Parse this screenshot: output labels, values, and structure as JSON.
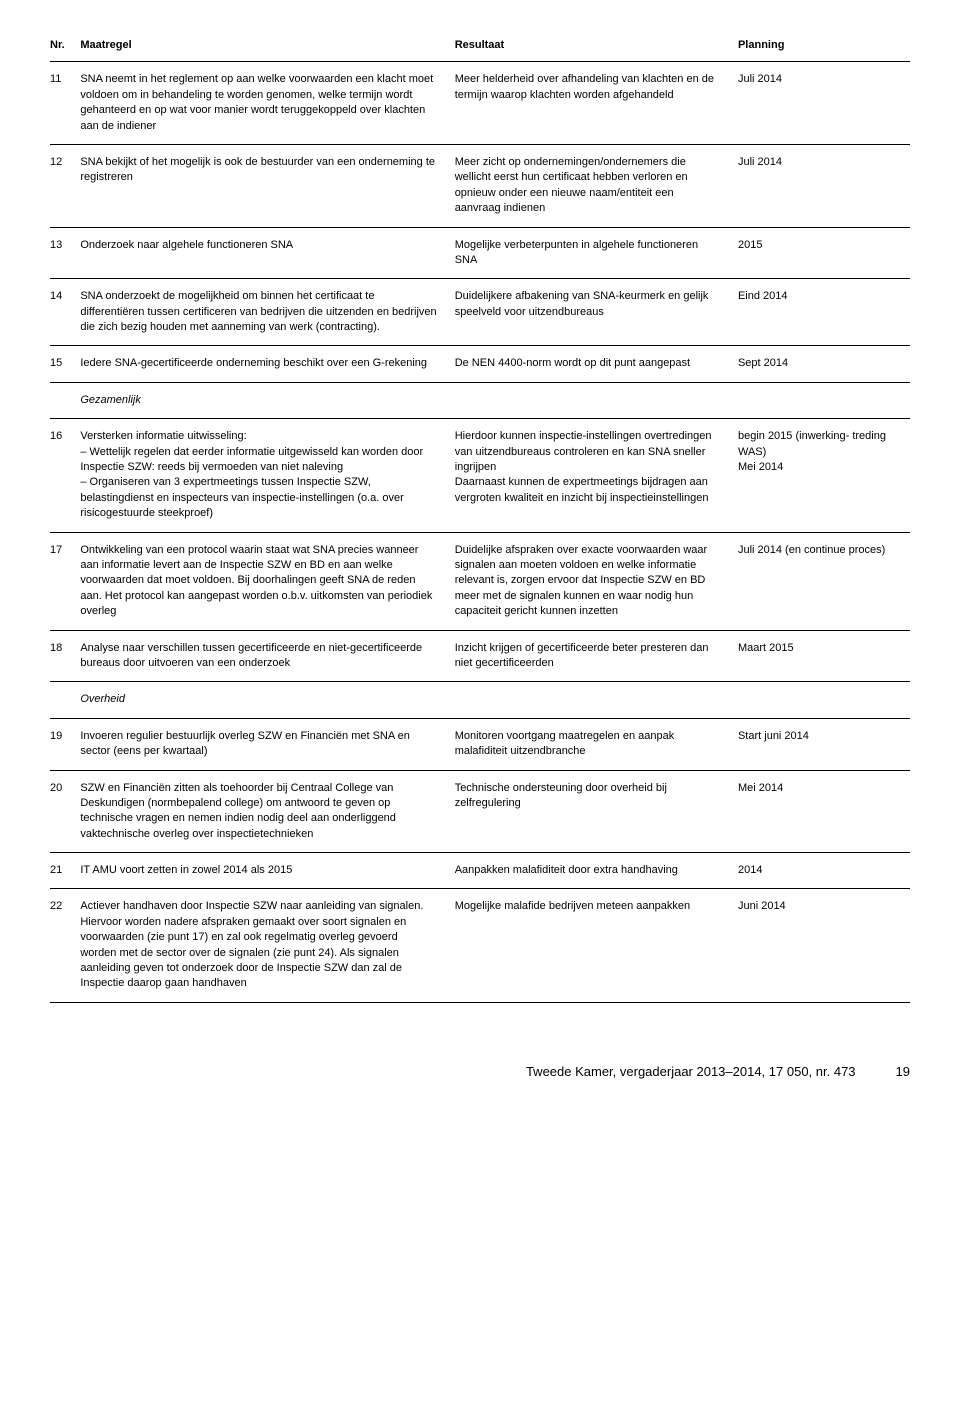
{
  "headers": {
    "nr": "Nr.",
    "maatregel": "Maatregel",
    "resultaat": "Resultaat",
    "planning": "Planning"
  },
  "rows": [
    {
      "nr": "11",
      "maatregel": "SNA neemt in het reglement op aan welke voorwaarden een klacht moet voldoen om in behandeling te worden genomen, welke termijn wordt gehanteerd en op wat voor manier wordt teruggekoppeld over klachten aan de indiener",
      "resultaat": "Meer helderheid over afhandeling van klachten en de termijn waarop klachten worden afgehandeld",
      "planning": "Juli 2014"
    },
    {
      "nr": "12",
      "maatregel": "SNA bekijkt of het mogelijk is ook de bestuurder van een onderneming te registreren",
      "resultaat": "Meer zicht op ondernemingen/ondernemers die wellicht eerst hun certificaat hebben verloren en opnieuw onder een nieuwe naam/entiteit een aanvraag indienen",
      "planning": "Juli 2014"
    },
    {
      "nr": "13",
      "maatregel": "Onderzoek naar algehele functioneren SNA",
      "resultaat": "Mogelijke verbeterpunten in algehele functioneren SNA",
      "planning": "2015"
    },
    {
      "nr": "14",
      "maatregel": "SNA onderzoekt de mogelijkheid om binnen het certificaat te differentiëren tussen certificeren van bedrijven die uitzenden en bedrijven die zich bezig houden met aanneming van werk (contracting).",
      "resultaat": "Duidelijkere afbakening van SNA-keurmerk en gelijk speelveld voor uitzendbureaus",
      "planning": "Eind 2014"
    },
    {
      "nr": "15",
      "maatregel": "Iedere SNA-gecertificeerde onderneming beschikt over een G-rekening",
      "resultaat": "De NEN 4400-norm wordt op dit punt aangepast",
      "planning": "Sept 2014"
    },
    {
      "section": "Gezamenlijk"
    },
    {
      "nr": "16",
      "maatregel": "Versterken informatie uitwisseling:\n– Wettelijk regelen dat eerder informatie uitgewisseld kan worden door Inspectie SZW: reeds bij vermoeden van niet naleving\n– Organiseren van 3 expertmeetings tussen Inspectie SZW, belastingdienst en inspecteurs van inspectie-instellingen (o.a. over risicogestuurde steekproef)",
      "resultaat": "Hierdoor kunnen inspectie-instellingen overtredingen van uitzendbureaus controleren en kan SNA sneller ingrijpen\nDaarnaast kunnen de expertmeetings bijdragen aan vergroten kwaliteit en inzicht bij inspectieinstellingen",
      "planning": "begin 2015 (inwerking- treding WAS)\nMei 2014"
    },
    {
      "nr": "17",
      "maatregel": "Ontwikkeling van een protocol waarin staat wat SNA precies wanneer aan informatie levert aan de Inspectie SZW en BD en aan welke voorwaarden dat moet voldoen. Bij doorhalingen geeft SNA de reden aan. Het protocol kan aangepast worden o.b.v. uitkomsten van periodiek overleg",
      "resultaat": "Duidelijke afspraken over exacte voorwaarden waar signalen aan moeten voldoen en welke informatie relevant is, zorgen ervoor dat Inspectie SZW en BD meer met de signalen kunnen en waar nodig hun capaciteit gericht kunnen inzetten",
      "planning": "Juli 2014 (en continue proces)"
    },
    {
      "nr": "18",
      "maatregel": "Analyse naar verschillen tussen gecertificeerde en niet-gecertificeerde bureaus door uitvoeren van een onderzoek",
      "resultaat": "Inzicht krijgen of gecertificeerde beter presteren dan niet gecertificeerden",
      "planning": "Maart 2015"
    },
    {
      "section": "Overheid"
    },
    {
      "nr": "19",
      "maatregel": "Invoeren regulier bestuurlijk overleg SZW en Financiën met SNA en sector (eens per kwartaal)",
      "resultaat": "Monitoren voortgang maatregelen en aanpak malafiditeit uitzendbranche",
      "planning": "Start juni 2014"
    },
    {
      "nr": "20",
      "maatregel": "SZW en Financiën zitten als toehoorder bij Centraal College van Deskundigen (normbepalend college) om antwoord te geven op technische vragen en nemen indien nodig deel aan onderliggend vaktechnische overleg over inspectietechnieken",
      "resultaat": "Technische ondersteuning door overheid bij zelfregulering",
      "planning": "Mei 2014"
    },
    {
      "nr": "21",
      "maatregel": "IT AMU voort zetten in zowel 2014 als 2015",
      "resultaat": "Aanpakken malafiditeit door extra handhaving",
      "planning": "2014"
    },
    {
      "nr": "22",
      "maatregel": "Actiever handhaven door Inspectie SZW naar aanleiding van signalen. Hiervoor worden nadere afspraken gemaakt over soort signalen en voorwaarden (zie punt 17) en zal ook regelmatig overleg gevoerd worden met de sector over de signalen (zie punt 24). Als signalen aanleiding geven tot onderzoek door de Inspectie SZW dan zal de Inspectie daarop gaan handhaven",
      "resultaat": "Mogelijke malafide bedrijven meteen aanpakken",
      "planning": "Juni 2014"
    }
  ],
  "footer": {
    "text": "Tweede Kamer, vergaderjaar 2013–2014, 17 050, nr. 473",
    "page": "19"
  }
}
